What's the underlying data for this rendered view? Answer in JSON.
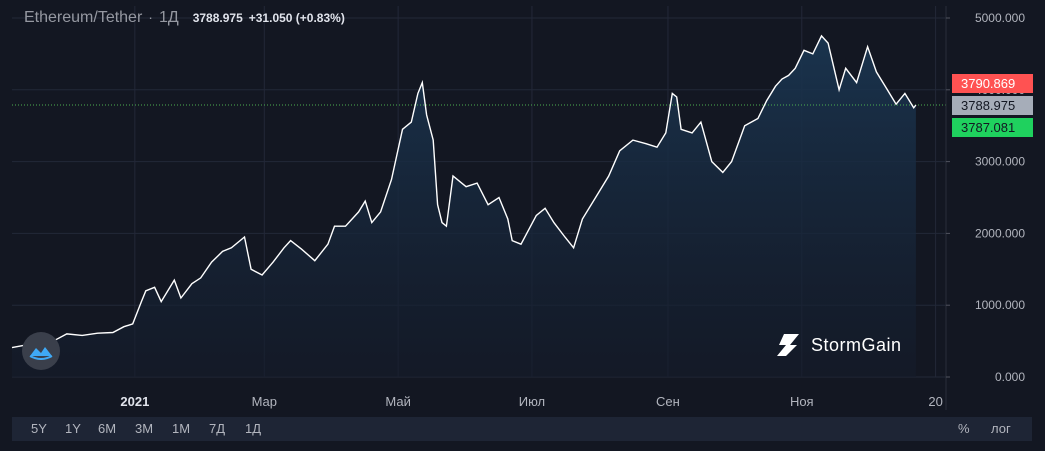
{
  "header": {
    "symbol": "Ethereum/Tether",
    "separator": "·",
    "timeframe": "1Д",
    "last_price": "3788.975",
    "change": "+31.050 (+0.83%)"
  },
  "price_badges": {
    "high": "3790.869",
    "current": "3788.975",
    "low": "3787.081"
  },
  "brand": {
    "name": "StormGain"
  },
  "toolbar": {
    "ranges": [
      "5Y",
      "1Y",
      "6M",
      "3M",
      "1M",
      "7Д",
      "1Д"
    ],
    "percent": "%",
    "log": "лог"
  },
  "colors": {
    "background": "#131722",
    "line": "#ffffff",
    "area": "#1a3550",
    "high_badge": "#ff5252",
    "low_badge": "#1fd15e",
    "current_badge": "#a6adb9",
    "price_line": "#4caf50"
  },
  "chart_data": {
    "type": "area",
    "title": "",
    "xlabel": "",
    "ylabel": "",
    "x_axis": "date",
    "ylim": [
      0,
      5000
    ],
    "y_ticks": [
      "0.000",
      "1000.000",
      "2000.000",
      "3000.000",
      "4000.000",
      "5000.000"
    ],
    "x_ticks": [
      {
        "label": "2021",
        "date": "2021-01-01"
      },
      {
        "label": "Мар",
        "date": "2021-03-01"
      },
      {
        "label": "Май",
        "date": "2021-05-01"
      },
      {
        "label": "Июл",
        "date": "2021-07-01"
      },
      {
        "label": "Сен",
        "date": "2021-09-01"
      },
      {
        "label": "Ноя",
        "date": "2021-11-01"
      },
      {
        "label": "20",
        "date": "2022-01-01"
      }
    ],
    "grid": true,
    "current_value": 3788.975,
    "series": [
      {
        "points": [
          [
            "2020-11-06",
            410
          ],
          [
            "2020-11-15",
            460
          ],
          [
            "2020-11-22",
            540
          ],
          [
            "2020-11-26",
            520
          ],
          [
            "2020-12-01",
            600
          ],
          [
            "2020-12-08",
            580
          ],
          [
            "2020-12-15",
            610
          ],
          [
            "2020-12-22",
            620
          ],
          [
            "2020-12-27",
            700
          ],
          [
            "2020-12-31",
            740
          ],
          [
            "2021-01-04",
            1050
          ],
          [
            "2021-01-06",
            1200
          ],
          [
            "2021-01-10",
            1250
          ],
          [
            "2021-01-13",
            1050
          ],
          [
            "2021-01-19",
            1350
          ],
          [
            "2021-01-22",
            1100
          ],
          [
            "2021-01-27",
            1300
          ],
          [
            "2021-01-31",
            1380
          ],
          [
            "2021-02-05",
            1600
          ],
          [
            "2021-02-10",
            1750
          ],
          [
            "2021-02-14",
            1800
          ],
          [
            "2021-02-20",
            1950
          ],
          [
            "2021-02-23",
            1500
          ],
          [
            "2021-02-28",
            1420
          ],
          [
            "2021-03-05",
            1600
          ],
          [
            "2021-03-10",
            1800
          ],
          [
            "2021-03-13",
            1900
          ],
          [
            "2021-03-18",
            1780
          ],
          [
            "2021-03-24",
            1620
          ],
          [
            "2021-03-30",
            1850
          ],
          [
            "2021-04-02",
            2100
          ],
          [
            "2021-04-07",
            2100
          ],
          [
            "2021-04-13",
            2300
          ],
          [
            "2021-04-16",
            2450
          ],
          [
            "2021-04-19",
            2150
          ],
          [
            "2021-04-23",
            2300
          ],
          [
            "2021-04-28",
            2750
          ],
          [
            "2021-05-03",
            3450
          ],
          [
            "2021-05-07",
            3550
          ],
          [
            "2021-05-10",
            3950
          ],
          [
            "2021-05-12",
            4100
          ],
          [
            "2021-05-14",
            3650
          ],
          [
            "2021-05-17",
            3300
          ],
          [
            "2021-05-19",
            2400
          ],
          [
            "2021-05-21",
            2150
          ],
          [
            "2021-05-23",
            2100
          ],
          [
            "2021-05-26",
            2800
          ],
          [
            "2021-06-01",
            2650
          ],
          [
            "2021-06-06",
            2700
          ],
          [
            "2021-06-11",
            2400
          ],
          [
            "2021-06-16",
            2500
          ],
          [
            "2021-06-20",
            2200
          ],
          [
            "2021-06-22",
            1900
          ],
          [
            "2021-06-26",
            1850
          ],
          [
            "2021-07-03",
            2250
          ],
          [
            "2021-07-07",
            2350
          ],
          [
            "2021-07-11",
            2150
          ],
          [
            "2021-07-16",
            1950
          ],
          [
            "2021-07-20",
            1800
          ],
          [
            "2021-07-24",
            2200
          ],
          [
            "2021-07-30",
            2500
          ],
          [
            "2021-08-05",
            2800
          ],
          [
            "2021-08-10",
            3150
          ],
          [
            "2021-08-16",
            3300
          ],
          [
            "2021-08-22",
            3250
          ],
          [
            "2021-08-27",
            3200
          ],
          [
            "2021-08-31",
            3400
          ],
          [
            "2021-09-03",
            3950
          ],
          [
            "2021-09-05",
            3900
          ],
          [
            "2021-09-07",
            3450
          ],
          [
            "2021-09-12",
            3400
          ],
          [
            "2021-09-16",
            3550
          ],
          [
            "2021-09-21",
            3000
          ],
          [
            "2021-09-26",
            2850
          ],
          [
            "2021-09-30",
            3000
          ],
          [
            "2021-10-06",
            3500
          ],
          [
            "2021-10-12",
            3600
          ],
          [
            "2021-10-16",
            3850
          ],
          [
            "2021-10-20",
            4050
          ],
          [
            "2021-10-23",
            4150
          ],
          [
            "2021-10-26",
            4200
          ],
          [
            "2021-10-29",
            4300
          ],
          [
            "2021-11-02",
            4550
          ],
          [
            "2021-11-06",
            4500
          ],
          [
            "2021-11-10",
            4750
          ],
          [
            "2021-11-13",
            4650
          ],
          [
            "2021-11-18",
            4000
          ],
          [
            "2021-11-21",
            4300
          ],
          [
            "2021-11-26",
            4100
          ],
          [
            "2021-12-01",
            4600
          ],
          [
            "2021-12-05",
            4250
          ],
          [
            "2021-12-09",
            4050
          ],
          [
            "2021-12-14",
            3800
          ],
          [
            "2021-12-18",
            3950
          ],
          [
            "2021-12-22",
            3750
          ],
          [
            "2021-12-23",
            3788.975
          ]
        ]
      }
    ]
  }
}
